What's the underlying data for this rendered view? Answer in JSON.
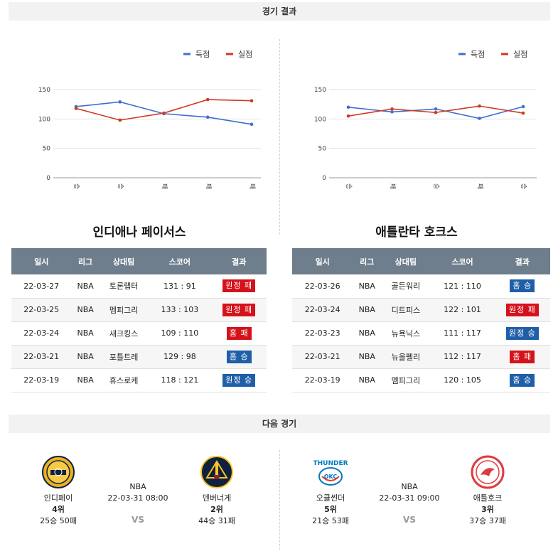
{
  "sections": {
    "results_title": "경기 결과",
    "next_title": "다음 경기"
  },
  "legend": {
    "scored": "득점",
    "conceded": "실점"
  },
  "colors": {
    "scored": "#3e6fd0",
    "conceded": "#d0391f",
    "win": "#1f5fa8",
    "lose": "#d5121b"
  },
  "chart_data": [
    {
      "type": "line",
      "categories": [
        "승",
        "승",
        "패",
        "패",
        "패"
      ],
      "series": [
        {
          "name": "득점",
          "values": [
            121,
            129,
            109,
            103,
            91
          ]
        },
        {
          "name": "실점",
          "values": [
            118,
            98,
            110,
            133,
            131
          ]
        }
      ],
      "yticks": [
        0,
        50,
        100,
        150
      ],
      "ylim": [
        0,
        150
      ]
    },
    {
      "type": "line",
      "categories": [
        "승",
        "패",
        "승",
        "패",
        "승"
      ],
      "series": [
        {
          "name": "득점",
          "values": [
            120,
            112,
            117,
            101,
            121
          ]
        },
        {
          "name": "실점",
          "values": [
            105,
            117,
            111,
            122,
            110
          ]
        }
      ],
      "yticks": [
        0,
        50,
        100,
        150
      ],
      "ylim": [
        0,
        150
      ]
    }
  ],
  "columns": [
    "일시",
    "리그",
    "상대팀",
    "스코어",
    "결과"
  ],
  "teams": [
    {
      "name": "인디애나 페이서스",
      "rows": [
        {
          "date": "22-03-27",
          "league": "NBA",
          "opp": "토론랩터",
          "score": "131 : 91",
          "result": "원정 패",
          "win": false
        },
        {
          "date": "22-03-25",
          "league": "NBA",
          "opp": "멤피그리",
          "score": "133 : 103",
          "result": "원정 패",
          "win": false
        },
        {
          "date": "22-03-24",
          "league": "NBA",
          "opp": "새크킹스",
          "score": "109 : 110",
          "result": "홈 패",
          "win": false
        },
        {
          "date": "22-03-21",
          "league": "NBA",
          "opp": "포틀트레",
          "score": "129 : 98",
          "result": "홈 승",
          "win": true
        },
        {
          "date": "22-03-19",
          "league": "NBA",
          "opp": "휴스로케",
          "score": "118 : 121",
          "result": "원정 승",
          "win": true
        }
      ]
    },
    {
      "name": "애틀란타 호크스",
      "rows": [
        {
          "date": "22-03-26",
          "league": "NBA",
          "opp": "골든워리",
          "score": "121 : 110",
          "result": "홈 승",
          "win": true
        },
        {
          "date": "22-03-24",
          "league": "NBA",
          "opp": "디트피스",
          "score": "122 : 101",
          "result": "원정 패",
          "win": false
        },
        {
          "date": "22-03-23",
          "league": "NBA",
          "opp": "뉴욕닉스",
          "score": "111 : 117",
          "result": "원정 승",
          "win": true
        },
        {
          "date": "22-03-21",
          "league": "NBA",
          "opp": "뉴올펠리",
          "score": "112 : 117",
          "result": "홈 패",
          "win": false
        },
        {
          "date": "22-03-19",
          "league": "NBA",
          "opp": "멤피그리",
          "score": "120 : 105",
          "result": "홈 승",
          "win": true
        }
      ]
    }
  ],
  "next_games": [
    {
      "league": "NBA",
      "datetime": "22-03-31 08:00",
      "vs": "VS",
      "home": {
        "name": "인디페이",
        "rank": "4위",
        "record": "25승 50패",
        "logo": "pacers-logo"
      },
      "away": {
        "name": "덴버너게",
        "rank": "2위",
        "record": "44승 31패",
        "logo": "nuggets-logo"
      }
    },
    {
      "league": "NBA",
      "datetime": "22-03-31 09:00",
      "vs": "VS",
      "home": {
        "name": "오클썬더",
        "rank": "5위",
        "record": "21승 53패",
        "logo": "thunder-logo"
      },
      "away": {
        "name": "애틀호크",
        "rank": "3위",
        "record": "37승 37패",
        "logo": "hawks-logo"
      }
    }
  ]
}
